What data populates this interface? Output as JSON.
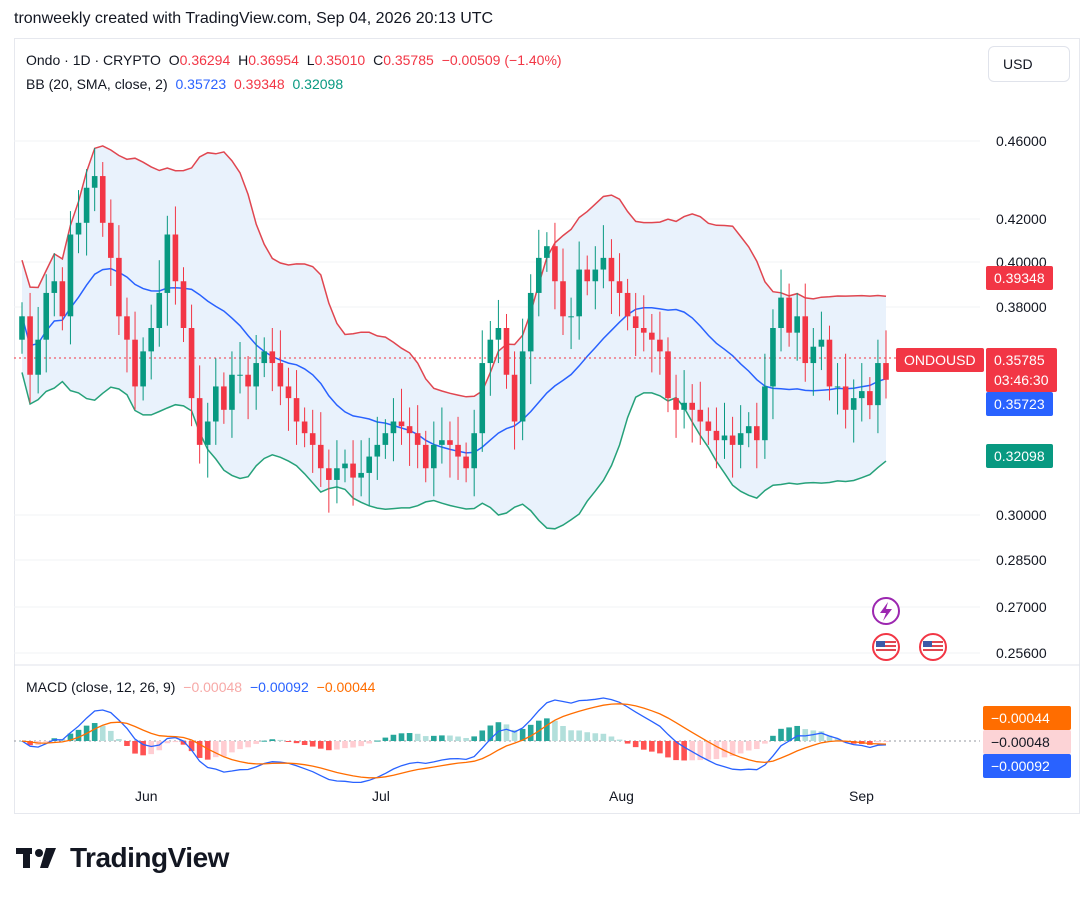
{
  "caption": "tronweekly created with TradingView.com, Sep 04, 2026 20:13 UTC",
  "currency_button": "USD",
  "legend": {
    "symbol": "Ondo · 1D · CRYPTO",
    "o_label": "O",
    "o": "0.36294",
    "h_label": "H",
    "h": "0.36954",
    "l_label": "L",
    "l": "0.35010",
    "c_label": "C",
    "c": "0.35785",
    "change": "−0.00509 (−1.40%)",
    "bb_label": "BB (20, SMA, close, 2)",
    "bb_basis": "0.35723",
    "bb_upper": "0.39348",
    "bb_lower": "0.32098",
    "macd_label": "MACD (close, 12, 26, 9)",
    "macd_hist": "−0.00048",
    "macd_line": "−0.00092",
    "macd_signal": "−0.00044"
  },
  "price_tags": {
    "bb_upper": "0.39348",
    "symbol": "ONDOUSD",
    "last": "0.35785",
    "countdown": "03:46:30",
    "bb_basis": "0.35723",
    "bb_lower": "0.32098",
    "macd_signal": "−0.00044",
    "macd_hist": "−0.00048",
    "macd_line": "−0.00092"
  },
  "colors": {
    "up": "#089981",
    "down": "#f23645",
    "upper_band": "#e04650",
    "basis": "#2962ff",
    "lower_band": "#26a17a",
    "band_fill": "#e9f2fc",
    "macd_line": "#2962ff",
    "macd_signal": "#ff6d00"
  },
  "brand": "TradingView",
  "chart_data": {
    "type": "candlestick",
    "price_axis_ticks": [
      "0.46000",
      "0.42000",
      "0.40000",
      "0.38000",
      "0.30000",
      "0.28500",
      "0.27000",
      "0.25600"
    ],
    "time_axis_ticks": [
      "Jun",
      "Jul",
      "Aug",
      "Sep"
    ],
    "candles_close": [
      0.385,
      0.36,
      0.375,
      0.395,
      0.4,
      0.385,
      0.42,
      0.425,
      0.44,
      0.445,
      0.425,
      0.41,
      0.385,
      0.375,
      0.355,
      0.37,
      0.38,
      0.395,
      0.42,
      0.4,
      0.38,
      0.35,
      0.33,
      0.34,
      0.355,
      0.345,
      0.36,
      0.36,
      0.355,
      0.365,
      0.37,
      0.365,
      0.355,
      0.35,
      0.34,
      0.335,
      0.33,
      0.32,
      0.315,
      0.32,
      0.322,
      0.316,
      0.318,
      0.325,
      0.33,
      0.335,
      0.34,
      0.338,
      0.335,
      0.33,
      0.32,
      0.33,
      0.332,
      0.33,
      0.325,
      0.32,
      0.335,
      0.365,
      0.375,
      0.38,
      0.36,
      0.34,
      0.37,
      0.395,
      0.41,
      0.415,
      0.4,
      0.385,
      0.385,
      0.405,
      0.4,
      0.405,
      0.41,
      0.4,
      0.395,
      0.385,
      0.38,
      0.378,
      0.375,
      0.37,
      0.35,
      0.345,
      0.348,
      0.345,
      0.34,
      0.336,
      0.332,
      0.334,
      0.33,
      0.335,
      0.338,
      0.332,
      0.355,
      0.38,
      0.393,
      0.378,
      0.385,
      0.365,
      0.372,
      0.375,
      0.355,
      0.355,
      0.345,
      0.35,
      0.353,
      0.347,
      0.365,
      0.35785
    ],
    "bollinger": {
      "upper": 0.39348,
      "basis": 0.35723,
      "lower": 0.32098
    },
    "macd": {
      "hist": -0.00048,
      "macd": -0.00092,
      "signal": -0.00044
    },
    "last_price": 0.35785
  }
}
